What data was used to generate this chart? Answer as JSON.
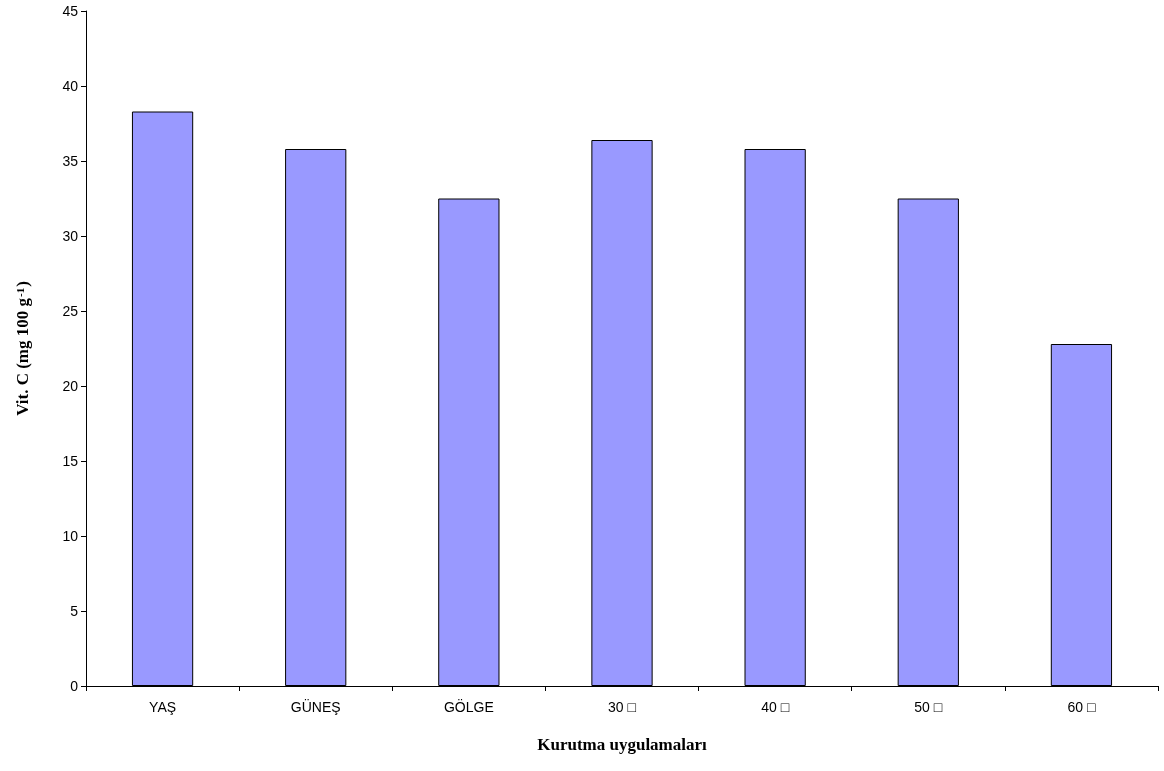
{
  "chart_data": {
    "type": "bar",
    "xlabel": "Kurutma uygulamaları",
    "ylabel": "Vit. C (mg 100 g$^{-1}$)",
    "categories": [
      "YAŞ",
      "GÜNEŞ",
      "GÖLGE",
      "30 □",
      "40 □",
      "50 □",
      "60 □"
    ],
    "values": [
      38.3,
      35.8,
      32.5,
      36.4,
      35.8,
      32.5,
      22.8
    ],
    "color": "#9999ff",
    "ylim": [
      0,
      45
    ],
    "yticks": [
      0,
      5,
      10,
      15,
      20,
      25,
      30,
      35,
      40,
      45
    ],
    "grid": false
  }
}
